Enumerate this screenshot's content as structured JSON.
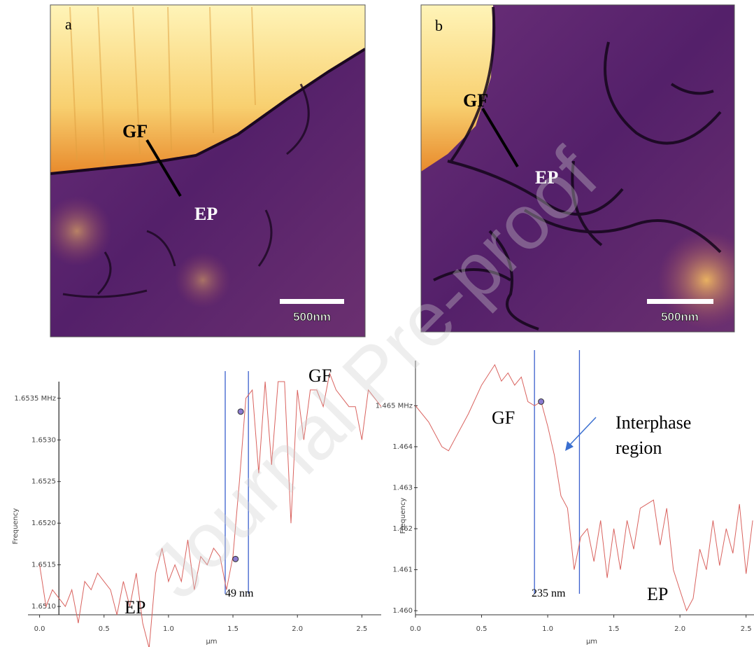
{
  "figure": {
    "panels": [
      {
        "label": "a",
        "annotations": [
          "GF",
          "EP"
        ],
        "scale_bar": "500nm"
      },
      {
        "label": "b",
        "annotations": [
          "GF",
          "EP"
        ],
        "scale_bar": "500nm"
      }
    ]
  },
  "watermark": "Journal Pre-proof",
  "chart_data": [
    {
      "type": "line",
      "x_label": "µm",
      "y_label": "Frequency",
      "color": "#d9625e",
      "xlim": [
        -0.09,
        2.65
      ],
      "ylim": [
        1.6509,
        1.6537
      ],
      "xticks": [
        {
          "value": 0,
          "label": "0.0"
        },
        0.5,
        {
          "value": 1,
          "label": "1.0"
        },
        1.5,
        {
          "value": 2,
          "label": "2.0"
        },
        2.5
      ],
      "yticks": [
        {
          "value": 1.651,
          "label": "1.6510"
        },
        1.6515,
        {
          "value": 1.652,
          "label": "1.6520"
        },
        1.6525,
        {
          "value": 1.653,
          "label": "1.6530"
        },
        {
          "value": 1.6535,
          "label": "1.6535 MHz"
        }
      ],
      "x": [
        0,
        0.05,
        0.1,
        0.15,
        0.2,
        0.25,
        0.3,
        0.35,
        0.4,
        0.45,
        0.5,
        0.55,
        0.6,
        0.65,
        0.7,
        0.75,
        0.8,
        0.85,
        0.9,
        0.95,
        1,
        1.05,
        1.1,
        1.15,
        1.2,
        1.25,
        1.3,
        1.35,
        1.4,
        1.45,
        1.5,
        1.55,
        1.6,
        1.65,
        1.7,
        1.75,
        1.8,
        1.85,
        1.9,
        1.95,
        2,
        2.05,
        2.1,
        2.15,
        2.2,
        2.25,
        2.3,
        2.35,
        2.4,
        2.45,
        2.5,
        2.55,
        2.6,
        2.65
      ],
      "values": [
        1.6515,
        1.651,
        1.6512,
        1.6511,
        1.651,
        1.6512,
        1.6508,
        1.6513,
        1.6512,
        1.6514,
        1.6513,
        1.6512,
        1.6509,
        1.6513,
        1.651,
        1.6514,
        1.6508,
        1.6505,
        1.6514,
        1.6517,
        1.6513,
        1.6515,
        1.6513,
        1.6518,
        1.6512,
        1.6516,
        1.6515,
        1.6517,
        1.6516,
        1.6512,
        1.6516,
        1.6525,
        1.6535,
        1.6536,
        1.6526,
        1.6537,
        1.6527,
        1.6537,
        1.6537,
        1.652,
        1.6536,
        1.653,
        1.6536,
        1.6536,
        1.6534,
        1.6538,
        1.6536,
        1.6535,
        1.6534,
        1.6534,
        1.653,
        1.6536,
        1.6535,
        1.6534
      ],
      "vlines": [
        {
          "x": 0.15,
          "color": "#333333"
        },
        {
          "x": 1.44,
          "color": "#3a5fcd"
        },
        {
          "x": 1.62,
          "color": "#3a5fcd"
        }
      ],
      "markers": [
        {
          "x": 1.52,
          "y": 1.65157
        },
        {
          "x": 1.56,
          "y": 1.65334
        }
      ],
      "annotations": [
        "GF",
        "EP",
        "49 nm"
      ]
    },
    {
      "type": "line",
      "x_label": "µm",
      "y_label": "Frequency",
      "color": "#d9625e",
      "xlim": [
        0,
        2.56
      ],
      "ylim": [
        1.4599,
        1.4661
      ],
      "xticks": [
        {
          "value": 0,
          "label": "0.0"
        },
        0.5,
        {
          "value": 1,
          "label": "1.0"
        },
        1.5,
        {
          "value": 2,
          "label": "2.0"
        },
        2.5
      ],
      "yticks": [
        {
          "value": 1.46,
          "label": "1.460"
        },
        1.461,
        1.462,
        1.463,
        1.464,
        {
          "value": 1.465,
          "label": "1.465 MHz"
        }
      ],
      "x": [
        0,
        0.1,
        0.2,
        0.25,
        0.3,
        0.4,
        0.5,
        0.6,
        0.65,
        0.7,
        0.75,
        0.8,
        0.85,
        0.9,
        0.95,
        1,
        1.05,
        1.1,
        1.15,
        1.2,
        1.25,
        1.3,
        1.35,
        1.4,
        1.45,
        1.5,
        1.55,
        1.6,
        1.65,
        1.7,
        1.75,
        1.8,
        1.85,
        1.9,
        1.95,
        2,
        2.05,
        2.1,
        2.15,
        2.2,
        2.25,
        2.3,
        2.35,
        2.4,
        2.45,
        2.5,
        2.55
      ],
      "values": [
        1.465,
        1.4646,
        1.464,
        1.4639,
        1.4642,
        1.4648,
        1.4655,
        1.466,
        1.4656,
        1.4658,
        1.4655,
        1.4657,
        1.4651,
        1.465,
        1.4651,
        1.4645,
        1.4638,
        1.4628,
        1.4625,
        1.461,
        1.4618,
        1.462,
        1.4612,
        1.4622,
        1.4608,
        1.462,
        1.461,
        1.4622,
        1.4615,
        1.4625,
        1.4626,
        1.4627,
        1.4616,
        1.4625,
        1.461,
        1.4605,
        1.46,
        1.4603,
        1.4615,
        1.461,
        1.4622,
        1.4611,
        1.462,
        1.4614,
        1.4626,
        1.4609,
        1.4622
      ],
      "vlines": [
        {
          "x": 0.9,
          "color": "#3a5fcd"
        },
        {
          "x": 1.24,
          "color": "#3a5fcd"
        }
      ],
      "markers": [
        {
          "x": 0.95,
          "y": 1.4651
        }
      ],
      "annotations": [
        "GF",
        "Interphase",
        "region",
        "235 nm",
        "EP"
      ]
    }
  ]
}
